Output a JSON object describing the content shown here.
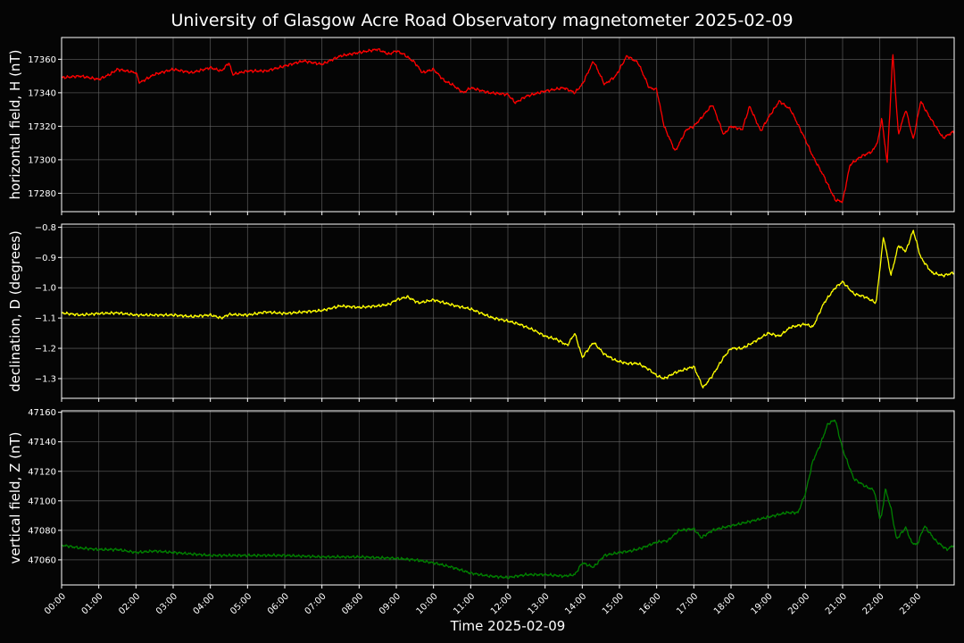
{
  "chart_data": {
    "type": "line",
    "title": "University of Glasgow Acre Road Observatory magnetometer 2025-02-09",
    "xlabel": "Time 2025-02-09",
    "x_ticks": [
      "00:00",
      "01:00",
      "02:00",
      "03:00",
      "04:00",
      "05:00",
      "06:00",
      "07:00",
      "08:00",
      "09:00",
      "10:00",
      "11:00",
      "12:00",
      "13:00",
      "14:00",
      "15:00",
      "16:00",
      "17:00",
      "18:00",
      "19:00",
      "20:00",
      "21:00",
      "22:00",
      "23:00"
    ],
    "xlim_hours": [
      0,
      24
    ],
    "grid": true,
    "panels": [
      {
        "name": "H",
        "ylabel": "horizontal field, H (nT)",
        "color": "#ff0000",
        "ylim": [
          17269,
          17373
        ],
        "y_ticks": [
          17280,
          17300,
          17320,
          17340,
          17360
        ],
        "y_tick_labels": [
          "17280",
          "17300",
          "17320",
          "17340",
          "17360"
        ],
        "x_hours": [
          0,
          0.5,
          1,
          1.3,
          1.5,
          2,
          2.1,
          2.5,
          3,
          3.5,
          4,
          4.3,
          4.5,
          4.6,
          5,
          5.5,
          6,
          6.5,
          7,
          7.5,
          8,
          8.5,
          8.8,
          9,
          9.2,
          9.5,
          9.7,
          10,
          10.3,
          10.5,
          10.8,
          11,
          11.5,
          12,
          12.2,
          12.5,
          13,
          13.5,
          13.8,
          14,
          14.3,
          14.6,
          14.9,
          15.2,
          15.5,
          15.8,
          16,
          16.2,
          16.5,
          16.8,
          17,
          17.2,
          17.5,
          17.8,
          18,
          18.3,
          18.5,
          18.8,
          19,
          19.3,
          19.6,
          20,
          20.2,
          20.5,
          20.8,
          21,
          21.2,
          21.5,
          21.8,
          21.95,
          22.05,
          22.2,
          22.35,
          22.5,
          22.7,
          22.9,
          23.1,
          23.3,
          23.5,
          23.7,
          24
        ],
        "values": [
          17349,
          17350,
          17348,
          17351,
          17354,
          17352,
          17346,
          17351,
          17354,
          17352,
          17355,
          17353,
          17358,
          17351,
          17353,
          17353,
          17356,
          17359,
          17357,
          17362,
          17364,
          17366,
          17363,
          17365,
          17363,
          17358,
          17352,
          17354,
          17347,
          17345,
          17340,
          17343,
          17340,
          17339,
          17334,
          17338,
          17341,
          17343,
          17340,
          17345,
          17359,
          17345,
          17350,
          17362,
          17358,
          17343,
          17342,
          17320,
          17305,
          17318,
          17320,
          17325,
          17333,
          17315,
          17320,
          17318,
          17332,
          17317,
          17325,
          17335,
          17330,
          17312,
          17302,
          17290,
          17276,
          17275,
          17297,
          17302,
          17305,
          17311,
          17325,
          17298,
          17364,
          17315,
          17330,
          17312,
          17335,
          17327,
          17320,
          17313,
          17317
        ]
      },
      {
        "name": "D",
        "ylabel": "declination, D (degrees)",
        "color": "#ffff00",
        "ylim": [
          -1.365,
          -0.79
        ],
        "y_ticks": [
          -1.3,
          -1.2,
          -1.1,
          -1.0,
          -0.9,
          -0.8
        ],
        "y_tick_labels": [
          "−1.3",
          "−1.2",
          "−1.1",
          "−1.0",
          "−0.9",
          "−0.8"
        ],
        "x_hours": [
          0,
          0.5,
          1,
          1.5,
          2,
          2.5,
          3,
          3.5,
          4,
          4.3,
          4.5,
          5,
          5.5,
          6,
          6.5,
          7,
          7.5,
          8,
          8.5,
          8.8,
          9,
          9.3,
          9.6,
          10,
          10.3,
          10.6,
          11,
          11.3,
          11.6,
          12,
          12.3,
          12.7,
          13,
          13.3,
          13.6,
          13.8,
          14,
          14.3,
          14.6,
          14.9,
          15.2,
          15.5,
          15.8,
          16,
          16.2,
          16.5,
          17,
          17.25,
          17.5,
          17.8,
          18,
          18.3,
          18.6,
          19,
          19.3,
          19.6,
          20,
          20.2,
          20.5,
          20.8,
          21,
          21.3,
          21.6,
          21.9,
          22.1,
          22.3,
          22.5,
          22.7,
          22.9,
          23.1,
          23.4,
          23.7,
          24
        ],
        "values": [
          -1.083,
          -1.09,
          -1.085,
          -1.083,
          -1.09,
          -1.09,
          -1.09,
          -1.095,
          -1.09,
          -1.1,
          -1.088,
          -1.09,
          -1.08,
          -1.085,
          -1.08,
          -1.075,
          -1.06,
          -1.065,
          -1.06,
          -1.055,
          -1.04,
          -1.03,
          -1.05,
          -1.04,
          -1.05,
          -1.06,
          -1.07,
          -1.085,
          -1.1,
          -1.11,
          -1.12,
          -1.14,
          -1.16,
          -1.17,
          -1.19,
          -1.15,
          -1.23,
          -1.18,
          -1.22,
          -1.24,
          -1.25,
          -1.25,
          -1.27,
          -1.29,
          -1.3,
          -1.28,
          -1.26,
          -1.33,
          -1.29,
          -1.23,
          -1.2,
          -1.2,
          -1.18,
          -1.15,
          -1.16,
          -1.13,
          -1.12,
          -1.13,
          -1.05,
          -1.0,
          -0.98,
          -1.02,
          -1.03,
          -1.05,
          -0.83,
          -0.96,
          -0.86,
          -0.88,
          -0.81,
          -0.9,
          -0.95,
          -0.96,
          -0.95
        ]
      },
      {
        "name": "Z",
        "ylabel": "vertical field, Z (nT)",
        "color": "#008000",
        "ylim": [
          47043,
          47161
        ],
        "y_ticks": [
          47060,
          47080,
          47100,
          47120,
          47140,
          47160
        ],
        "y_tick_labels": [
          "47060",
          "47080",
          "47100",
          "47120",
          "47140",
          "47160"
        ],
        "x_hours": [
          0,
          0.5,
          1,
          1.5,
          2,
          2.5,
          3,
          3.5,
          4,
          4.5,
          5,
          6,
          7,
          8,
          9,
          9.5,
          10,
          10.5,
          11,
          11.5,
          12,
          12.5,
          13,
          13.5,
          13.8,
          14,
          14.3,
          14.6,
          15,
          15.3,
          15.6,
          16,
          16.3,
          16.6,
          17,
          17.2,
          17.5,
          17.8,
          18,
          18.5,
          19,
          19.5,
          19.8,
          20,
          20.2,
          20.4,
          20.6,
          20.8,
          21,
          21.3,
          21.6,
          21.85,
          22,
          22.05,
          22.15,
          22.3,
          22.45,
          22.7,
          22.85,
          23,
          23.2,
          23.5,
          23.8,
          24
        ],
        "values": [
          47070,
          47068,
          47067,
          47067,
          47065,
          47066,
          47065,
          47064,
          47063,
          47063,
          47063,
          47063,
          47062,
          47062,
          47061,
          47060,
          47058,
          47055,
          47051,
          47049,
          47048,
          47050,
          47050,
          47049,
          47050,
          47058,
          47055,
          47063,
          47065,
          47066,
          47068,
          47072,
          47073,
          47080,
          47081,
          47075,
          47080,
          47082,
          47083,
          47086,
          47089,
          47092,
          47092,
          47105,
          47127,
          47138,
          47152,
          47155,
          47135,
          47115,
          47110,
          47107,
          47088,
          47090,
          47108,
          47095,
          47074,
          47082,
          47072,
          47070,
          47083,
          47073,
          47067,
          47070
        ]
      }
    ]
  }
}
